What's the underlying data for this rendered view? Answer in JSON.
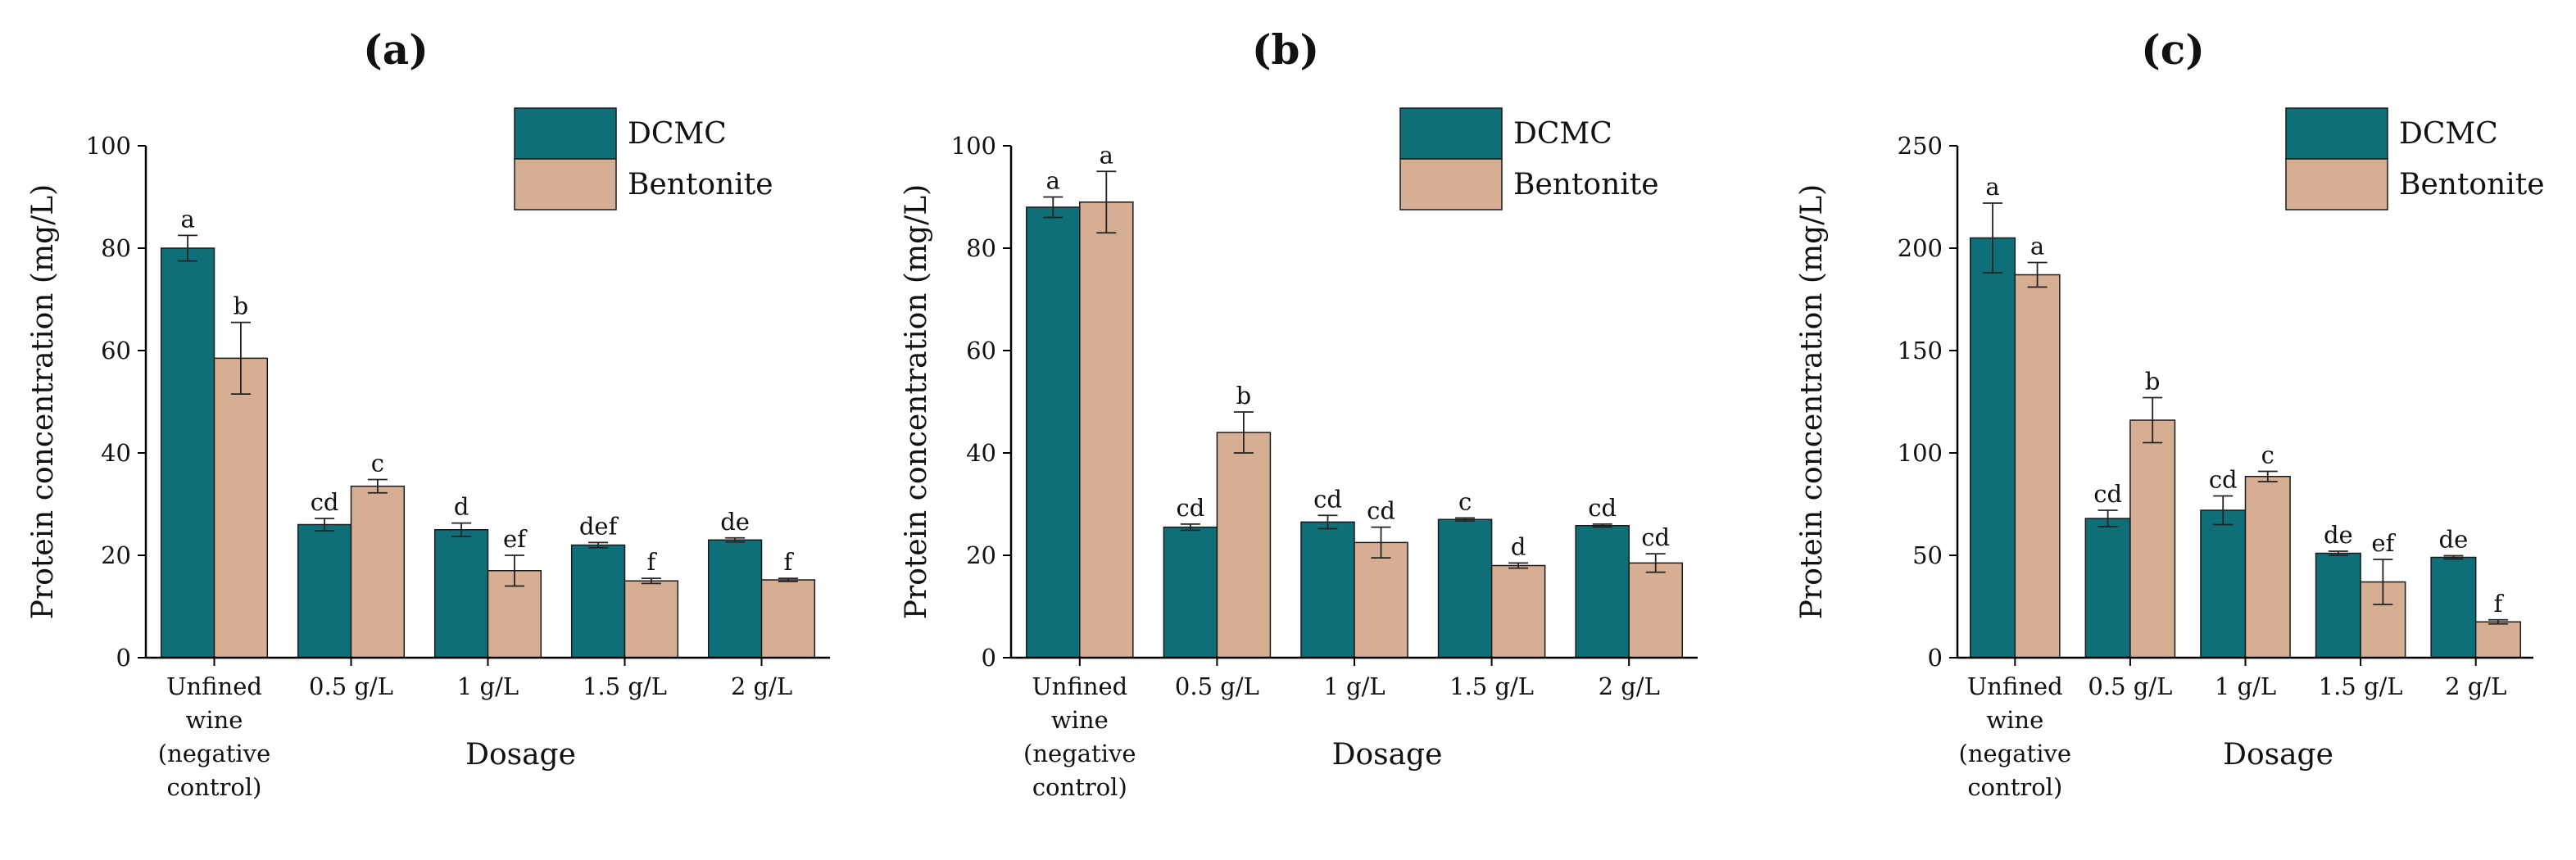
{
  "colors": {
    "dcmc": "#0e6f79",
    "bentonite": "#d6ae93",
    "axis": "#000000"
  },
  "chart_data": [
    {
      "type": "bar",
      "panel_label": "(a)",
      "categories": [
        [
          "Unfined",
          "wine",
          "(negative",
          "control)"
        ],
        [
          "0.5 g/L"
        ],
        [
          "1 g/L"
        ],
        [
          "1.5 g/L"
        ],
        [
          "2 g/L"
        ]
      ],
      "xlabel": "Dosage",
      "ylabel": "Protein concentration (mg/L)",
      "ylim": [
        0,
        100
      ],
      "yticks": [
        0,
        20,
        40,
        60,
        80,
        100
      ],
      "legend": [
        "DCMC",
        "Bentonite"
      ],
      "series": [
        {
          "name": "DCMC",
          "values": [
            80,
            26,
            25,
            22,
            23
          ],
          "errors": [
            2.5,
            1.2,
            1.3,
            0.5,
            0.4
          ],
          "labels": [
            "a",
            "cd",
            "d",
            "def",
            "de"
          ]
        },
        {
          "name": "Bentonite",
          "values": [
            58.5,
            33.5,
            17,
            15,
            15.2
          ],
          "errors": [
            7,
            1.3,
            3,
            0.5,
            0.3
          ],
          "labels": [
            "b",
            "c",
            "ef",
            "f",
            "f"
          ]
        }
      ]
    },
    {
      "type": "bar",
      "panel_label": "(b)",
      "categories": [
        [
          "Unfined",
          "wine",
          "(negative",
          "control)"
        ],
        [
          "0.5 g/L"
        ],
        [
          "1 g/L"
        ],
        [
          "1.5 g/L"
        ],
        [
          "2 g/L"
        ]
      ],
      "xlabel": "Dosage",
      "ylabel": "Protein concentration (mg/L)",
      "ylim": [
        0,
        100
      ],
      "yticks": [
        0,
        20,
        40,
        60,
        80,
        100
      ],
      "legend": [
        "DCMC",
        "Bentonite"
      ],
      "series": [
        {
          "name": "DCMC",
          "values": [
            88,
            25.5,
            26.5,
            27,
            25.8
          ],
          "errors": [
            2,
            0.6,
            1.3,
            0.3,
            0.3
          ],
          "labels": [
            "a",
            "cd",
            "cd",
            "c",
            "cd"
          ]
        },
        {
          "name": "Bentonite",
          "values": [
            89,
            44,
            22.5,
            18,
            18.5
          ],
          "errors": [
            6,
            4,
            3,
            0.5,
            1.8
          ],
          "labels": [
            "a",
            "b",
            "cd",
            "d",
            "cd"
          ]
        }
      ]
    },
    {
      "type": "bar",
      "panel_label": "(c)",
      "categories": [
        [
          "Unfined",
          "wine",
          "(negative",
          "control)"
        ],
        [
          "0.5 g/L"
        ],
        [
          "1 g/L"
        ],
        [
          "1.5 g/L"
        ],
        [
          "2 g/L"
        ]
      ],
      "xlabel": "Dosage",
      "ylabel": "Protein concentration (mg/L)",
      "ylim": [
        0,
        250
      ],
      "yticks": [
        0,
        50,
        100,
        150,
        200,
        250
      ],
      "legend": [
        "DCMC",
        "Bentonite"
      ],
      "series": [
        {
          "name": "DCMC",
          "values": [
            205,
            68,
            72,
            51,
            49
          ],
          "errors": [
            17,
            4,
            7,
            1,
            0.8
          ],
          "labels": [
            "a",
            "cd",
            "cd",
            "de",
            "de"
          ]
        },
        {
          "name": "Bentonite",
          "values": [
            187,
            116,
            88.5,
            37,
            17.5
          ],
          "errors": [
            6,
            11,
            2.5,
            11,
            1
          ],
          "labels": [
            "a",
            "b",
            "c",
            "ef",
            "f"
          ]
        }
      ]
    }
  ]
}
